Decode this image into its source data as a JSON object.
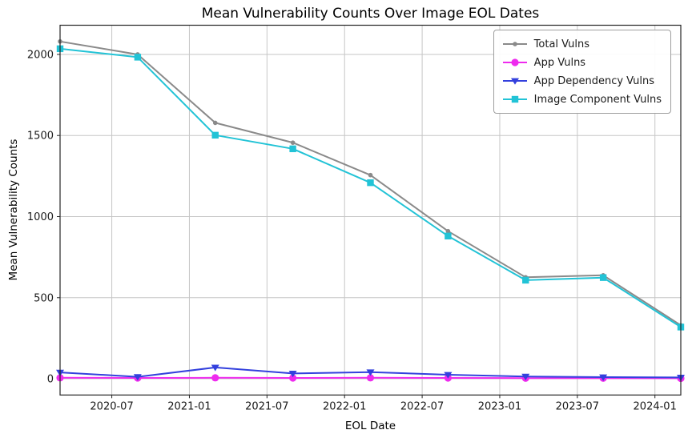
{
  "chart_data": {
    "type": "line",
    "title": "Mean Vulnerability Counts Over Image EOL Dates",
    "xlabel": "EOL Date",
    "ylabel": "Mean Vulnerability Counts",
    "grid": true,
    "legend_position": "upper right",
    "x_tick_labels": [
      "2020-07",
      "2021-01",
      "2021-07",
      "2022-01",
      "2022-07",
      "2023-01",
      "2023-07",
      "2024-01"
    ],
    "x_tick_positions_months": [
      4,
      10,
      16,
      22,
      28,
      34,
      40,
      46
    ],
    "y_ticks": [
      0,
      500,
      1000,
      1500,
      2000
    ],
    "xlim_months": [
      0,
      48
    ],
    "ylim": [
      -100,
      2180
    ],
    "x": [
      "2020-03",
      "2020-09",
      "2021-03",
      "2021-09",
      "2022-03",
      "2022-09",
      "2023-03",
      "2023-09",
      "2024-03"
    ],
    "x_positions_months": [
      0,
      6,
      12,
      18,
      24,
      30,
      36,
      42,
      48
    ],
    "series": [
      {
        "name": "Total Vulns",
        "color": "#8a8a8a",
        "marker": "circle-small",
        "values": [
          2080,
          2000,
          1578,
          1456,
          1256,
          910,
          626,
          638,
          330
        ]
      },
      {
        "name": "App Vulns",
        "color": "#ee2bee",
        "marker": "circle",
        "values": [
          6,
          5,
          6,
          5,
          6,
          5,
          4,
          4,
          3
        ]
      },
      {
        "name": "App Dependency Vulns",
        "color": "#3340dd",
        "marker": "triangle-down",
        "values": [
          39,
          12,
          70,
          33,
          41,
          25,
          14,
          10,
          8
        ]
      },
      {
        "name": "Image Component Vulns",
        "color": "#22c3d6",
        "marker": "square",
        "values": [
          2035,
          1983,
          1502,
          1418,
          1209,
          880,
          608,
          624,
          319
        ]
      }
    ]
  }
}
